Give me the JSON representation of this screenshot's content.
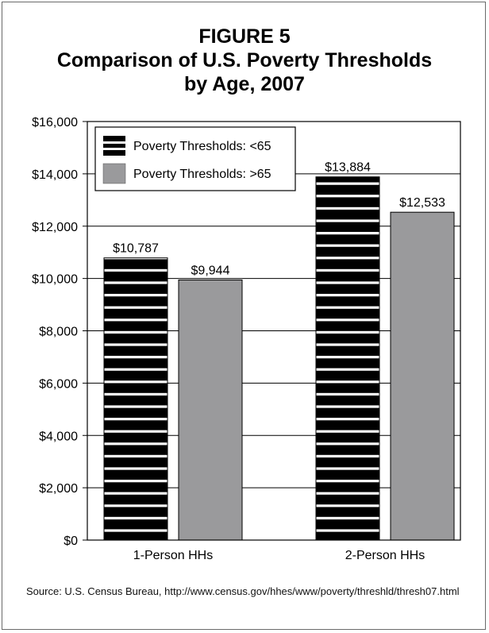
{
  "figure": {
    "label": "FIGURE 5",
    "title_line1": "Comparison of U.S. Poverty Thresholds",
    "title_line2": "by Age, 2007"
  },
  "source_text": "Source: U.S. Census Bureau, http://www.census.gov/hhes/www/poverty/threshld/thresh07.html",
  "colors": {
    "under65": "#000000",
    "under65_stripe": "#ffffff",
    "over65": "#9a9a9c",
    "axis": "#000000",
    "frame": "#6a6a6a"
  },
  "chart_data": {
    "type": "bar",
    "title": "Comparison of U.S. Poverty Thresholds by Age, 2007",
    "categories": [
      "1-Person HHs",
      "2-Person HHs"
    ],
    "series": [
      {
        "name": "Poverty Thresholds: <65",
        "values": [
          10787,
          13884
        ],
        "labels": [
          "$10,787",
          "$13,884"
        ],
        "pattern": "horizontal-stripes"
      },
      {
        "name": "Poverty Thresholds: >65",
        "values": [
          9944,
          12533
        ],
        "labels": [
          "$9,944",
          "$12,533"
        ],
        "pattern": "solid-gray"
      }
    ],
    "xlabel": "",
    "ylabel": "",
    "ylim": [
      0,
      16000
    ],
    "yticks": [
      0,
      2000,
      4000,
      6000,
      8000,
      10000,
      12000,
      14000,
      16000
    ],
    "ytick_labels": [
      "$0",
      "$2,000",
      "$4,000",
      "$6,000",
      "$8,000",
      "$10,000",
      "$12,000",
      "$14,000",
      "$16,000"
    ],
    "grid": true,
    "legend_position": "top-left"
  }
}
